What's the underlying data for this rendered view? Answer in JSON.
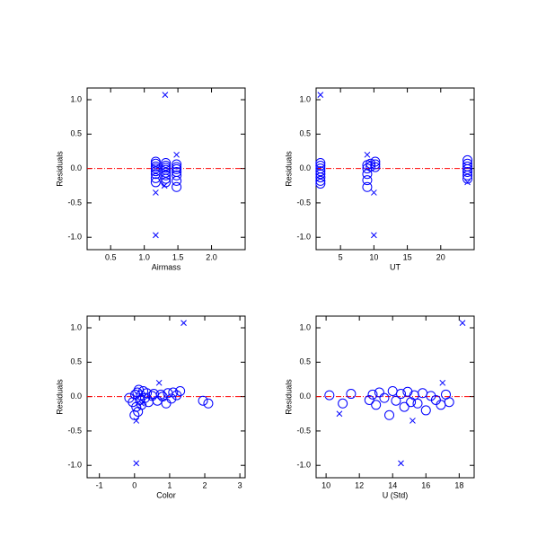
{
  "chart_data": [
    {
      "type": "scatter",
      "x_label": "Airmass",
      "y_label": "Residuals",
      "xlim": [
        0.15,
        2.5
      ],
      "ylim": [
        -1.18,
        1.17
      ],
      "xticks": [
        0.5,
        {
          "value": 1.0,
          "label": "1.0"
        },
        1.5,
        {
          "value": 2.0,
          "label": "2.0"
        }
      ],
      "yticks": [
        {
          "value": -1.0,
          "label": "-1.0"
        },
        {
          "value": -0.5,
          "label": "-0.5"
        },
        {
          "value": 0.0,
          "label": "0.0"
        },
        {
          "value": 0.5,
          "label": "0.5"
        },
        {
          "value": 1.0,
          "label": "1.0"
        }
      ],
      "hline": 0,
      "hline_color": "#ff0000",
      "series": [
        {
          "marker": "circle",
          "color": "#0000ff",
          "x": [
            1.17,
            1.17,
            1.17,
            1.17,
            1.17,
            1.17,
            1.17,
            1.17,
            1.32,
            1.32,
            1.32,
            1.32,
            1.32,
            1.32,
            1.32,
            1.32,
            1.48,
            1.48,
            1.48,
            1.48,
            1.48,
            1.48,
            1.48
          ],
          "values": [
            0.1,
            0.07,
            0.03,
            0,
            -0.04,
            -0.08,
            -0.14,
            -0.2,
            0.08,
            0.04,
            0.01,
            -0.02,
            -0.06,
            -0.1,
            -0.15,
            -0.2,
            0.06,
            0.02,
            -0.01,
            -0.05,
            -0.1,
            -0.18,
            -0.27
          ]
        },
        {
          "marker": "cross",
          "color": "#0000ff",
          "x": [
            1.31,
            1.17,
            1.17,
            1.48,
            1.3
          ],
          "values": [
            1.07,
            -0.97,
            -0.35,
            0.2,
            -0.25
          ]
        }
      ]
    },
    {
      "type": "scatter",
      "x_label": "UT",
      "y_label": "Residuals",
      "xlim": [
        1.35,
        25
      ],
      "ylim": [
        -1.18,
        1.17
      ],
      "xticks": [
        5,
        10,
        15,
        20
      ],
      "yticks": [
        {
          "value": -1.0,
          "label": "-1.0"
        },
        {
          "value": -0.5,
          "label": "-0.5"
        },
        {
          "value": 0.0,
          "label": "0.0"
        },
        {
          "value": 0.5,
          "label": "0.5"
        },
        {
          "value": 1.0,
          "label": "1.0"
        }
      ],
      "hline": 0,
      "hline_color": "#ff0000",
      "series": [
        {
          "marker": "circle",
          "color": "#0000ff",
          "x": [
            2,
            2,
            2,
            2,
            2,
            2,
            2,
            2,
            9,
            9,
            9,
            9,
            9,
            9.5,
            9.5,
            10.2,
            10.2,
            10.2,
            24,
            24,
            24,
            24,
            24,
            24,
            24
          ],
          "values": [
            0.08,
            0.04,
            0,
            -0.04,
            -0.08,
            -0.13,
            -0.18,
            -0.22,
            0.05,
            0,
            -0.08,
            -0.17,
            -0.27,
            0.03,
            0.07,
            0.1,
            0.06,
            0.02,
            0.12,
            0.07,
            0.03,
            -0.01,
            -0.05,
            -0.1,
            -0.15
          ]
        },
        {
          "marker": "cross",
          "color": "#0000ff",
          "x": [
            2,
            10,
            10,
            9,
            24
          ],
          "values": [
            1.07,
            -0.97,
            -0.35,
            0.2,
            -0.2
          ]
        }
      ]
    },
    {
      "type": "scatter",
      "x_label": "Color",
      "y_label": "Residuals",
      "xlim": [
        -1.35,
        3.15
      ],
      "ylim": [
        -1.18,
        1.17
      ],
      "xticks": [
        -1,
        0,
        1,
        2,
        3
      ],
      "yticks": [
        {
          "value": -1.0,
          "label": "-1.0"
        },
        {
          "value": -0.5,
          "label": "-0.5"
        },
        {
          "value": 0.0,
          "label": "0.0"
        },
        {
          "value": 0.5,
          "label": "0.5"
        },
        {
          "value": 1.0,
          "label": "1.0"
        }
      ],
      "hline": 0,
      "hline_color": "#ff0000",
      "series": [
        {
          "marker": "circle",
          "color": "#0000ff",
          "x": [
            -0.15,
            -0.05,
            0,
            0.02,
            0.05,
            0.08,
            0.1,
            0.12,
            0.15,
            0.18,
            0.2,
            0.25,
            0.3,
            0.35,
            0.4,
            0.5,
            0.55,
            0.65,
            0.75,
            0.8,
            0.9,
            0.95,
            1.05,
            1.1,
            1.2,
            1.3,
            1.95,
            2.1
          ],
          "values": [
            -0.02,
            -0.08,
            -0.27,
            0.03,
            -0.15,
            0.06,
            -0.22,
            0.1,
            -0.05,
            0.02,
            -0.12,
            0.08,
            -0.02,
            0.05,
            -0.08,
            0.01,
            0.04,
            -0.06,
            0.03,
            0,
            -0.1,
            0.05,
            -0.03,
            0.06,
            0.02,
            0.08,
            -0.06,
            -0.1
          ]
        },
        {
          "marker": "cross",
          "color": "#0000ff",
          "x": [
            1.4,
            0.05,
            0.05,
            0.7,
            0.2
          ],
          "values": [
            1.07,
            -0.97,
            -0.35,
            0.2,
            -0.1
          ]
        }
      ]
    },
    {
      "type": "scatter",
      "x_label": "U (Std)",
      "y_label": "Residuals",
      "xlim": [
        9.4,
        18.9
      ],
      "ylim": [
        -1.18,
        1.17
      ],
      "xticks": [
        10,
        12,
        14,
        16,
        18
      ],
      "yticks": [
        {
          "value": -1.0,
          "label": "-1.0"
        },
        {
          "value": -0.5,
          "label": "-0.5"
        },
        {
          "value": 0.0,
          "label": "0.0"
        },
        {
          "value": 0.5,
          "label": "0.5"
        },
        {
          "value": 1.0,
          "label": "1.0"
        }
      ],
      "hline": 0,
      "hline_color": "#ff0000",
      "series": [
        {
          "marker": "circle",
          "color": "#0000ff",
          "x": [
            10.2,
            11,
            11.5,
            12.6,
            12.8,
            13,
            13.2,
            13.5,
            13.8,
            14,
            14.2,
            14.5,
            14.7,
            14.9,
            15.1,
            15.3,
            15.5,
            15.8,
            16,
            16.3,
            16.6,
            16.9,
            17.2,
            17.4
          ],
          "values": [
            0.02,
            -0.1,
            0.04,
            -0.05,
            0.03,
            -0.12,
            0.06,
            -0.02,
            -0.27,
            0.08,
            -0.06,
            0.04,
            -0.15,
            0.07,
            -0.08,
            0.02,
            -0.1,
            0.05,
            -0.2,
            0.01,
            -0.05,
            -0.12,
            0.03,
            -0.08
          ]
        },
        {
          "marker": "cross",
          "color": "#0000ff",
          "x": [
            18.2,
            14.5,
            15.2,
            17,
            10.8
          ],
          "values": [
            1.07,
            -0.97,
            -0.35,
            0.2,
            -0.25
          ]
        }
      ]
    }
  ]
}
